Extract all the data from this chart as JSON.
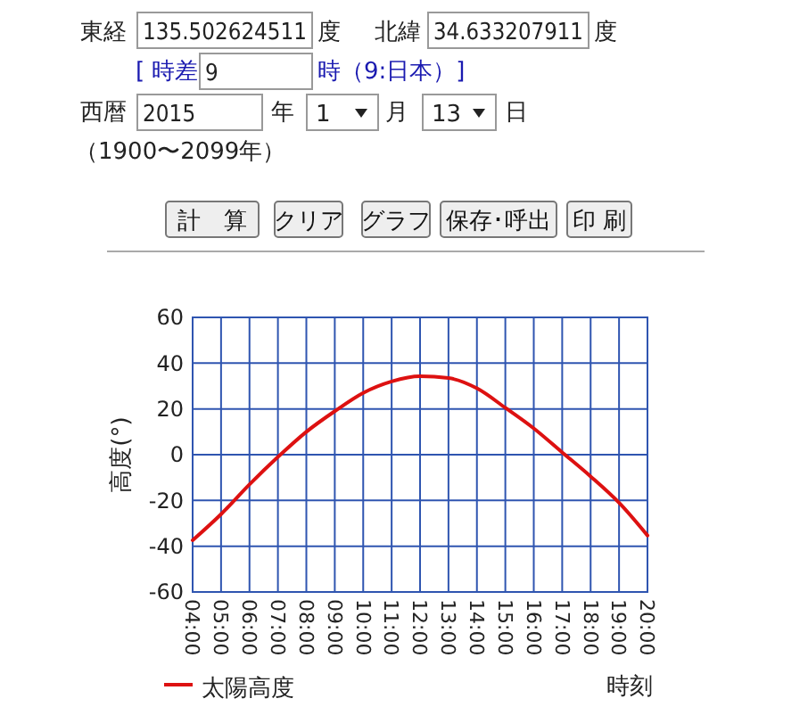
{
  "chart_data": [
    {
      "type": "other",
      "annotations": [
        "東経",
        "135.502624511",
        "度",
        "北緯",
        "34.633207911",
        "度",
        "[ 時差",
        "9",
        "時（9:日本）]",
        "西暦",
        "2015",
        "年",
        "1",
        "月",
        "13",
        "日",
        "（1900〜2099年）",
        "計　算",
        "クリア",
        "グラフ",
        "保存･呼出",
        "印 刷"
      ]
    },
    {
      "type": "line",
      "ylabel": "高度(°)",
      "xlabel": "時刻",
      "categories": [
        "04:00",
        "05:00",
        "06:00",
        "07:00",
        "08:00",
        "09:00",
        "10:00",
        "11:00",
        "12:00",
        "13:00",
        "14:00",
        "15:00",
        "16:00",
        "17:00",
        "18:00",
        "19:00",
        "20:00"
      ],
      "series": [
        {
          "name": "太陽高度",
          "color": "#dd1111",
          "values": [
            -37.4,
            -26,
            -13,
            -1,
            10,
            19,
            27,
            32,
            34.3,
            33.5,
            29,
            20.5,
            11.5,
            1,
            -9.5,
            -21,
            -35.3
          ]
        }
      ],
      "ylim": [
        -60,
        60
      ],
      "yticks": [
        -60,
        -40,
        -20,
        0,
        20,
        40,
        60
      ],
      "grid": true,
      "legend": "bottom left",
      "marker": "none",
      "line_style": "solid"
    }
  ]
}
